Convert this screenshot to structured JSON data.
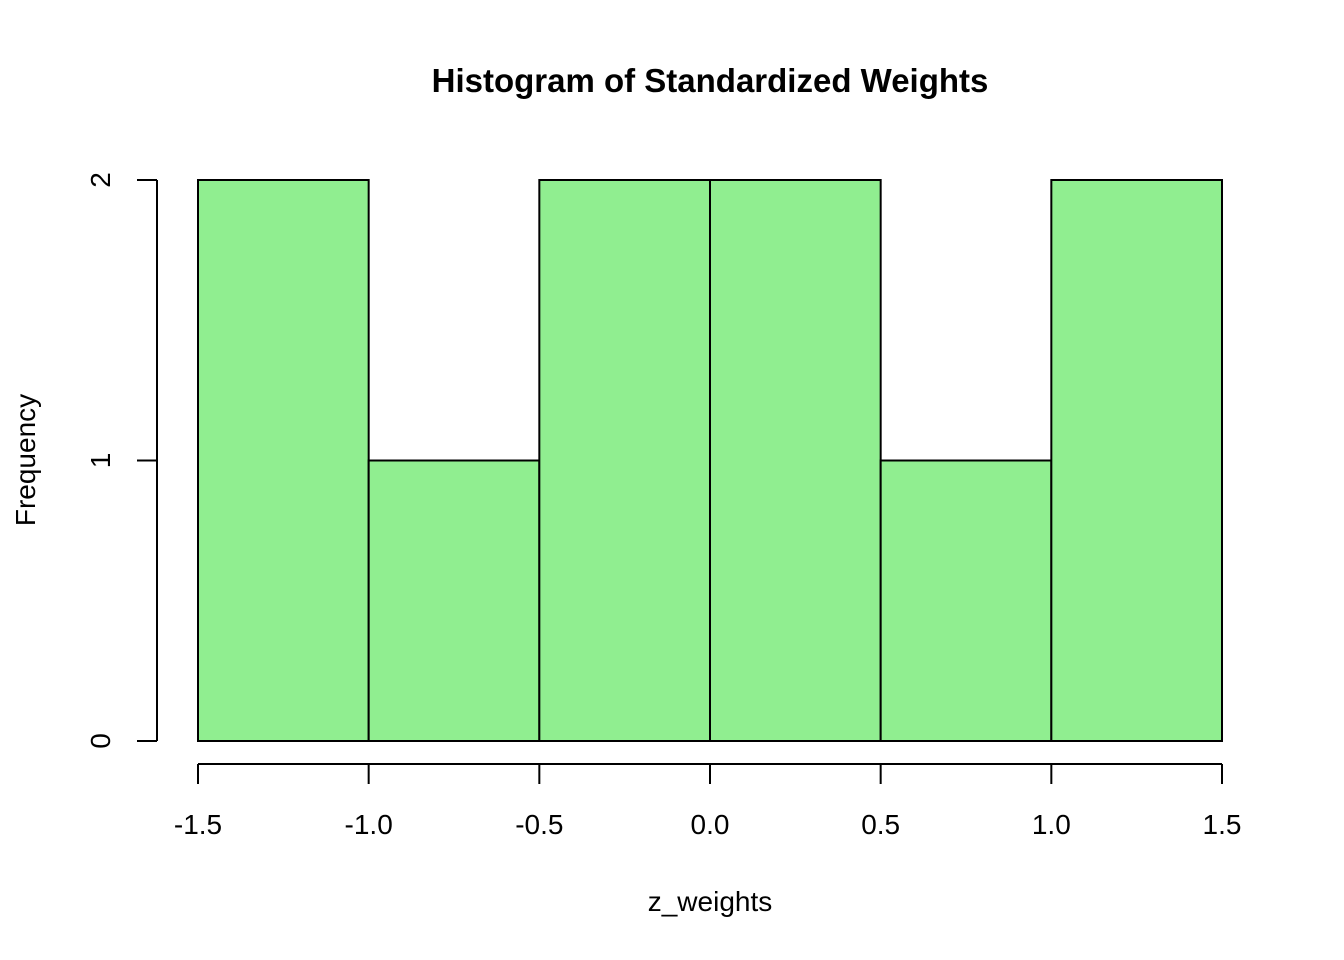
{
  "chart_data": {
    "type": "bar",
    "title": "Histogram of Standardized Weights",
    "xlabel": "z_weights",
    "ylabel": "Frequency",
    "bins": [
      {
        "start": -1.5,
        "end": -1.0,
        "count": 2
      },
      {
        "start": -1.0,
        "end": -0.5,
        "count": 1
      },
      {
        "start": -0.5,
        "end": 0.0,
        "count": 2
      },
      {
        "start": 0.0,
        "end": 0.5,
        "count": 2
      },
      {
        "start": 0.5,
        "end": 1.0,
        "count": 1
      },
      {
        "start": 1.0,
        "end": 1.5,
        "count": 2
      }
    ],
    "xlim": [
      -1.5,
      1.5
    ],
    "ylim": [
      0,
      2
    ],
    "x_ticks": [
      -1.5,
      -1.0,
      -0.5,
      0.0,
      0.5,
      1.0,
      1.5
    ],
    "x_tick_labels": [
      "-1.5",
      "-1.0",
      "-0.5",
      "0.0",
      "0.5",
      "1.0",
      "1.5"
    ],
    "y_ticks": [
      0,
      1,
      2
    ],
    "y_tick_labels": [
      "0",
      "1",
      "2"
    ],
    "bar_color": "#90EE90",
    "grid": false,
    "legend": "none"
  }
}
